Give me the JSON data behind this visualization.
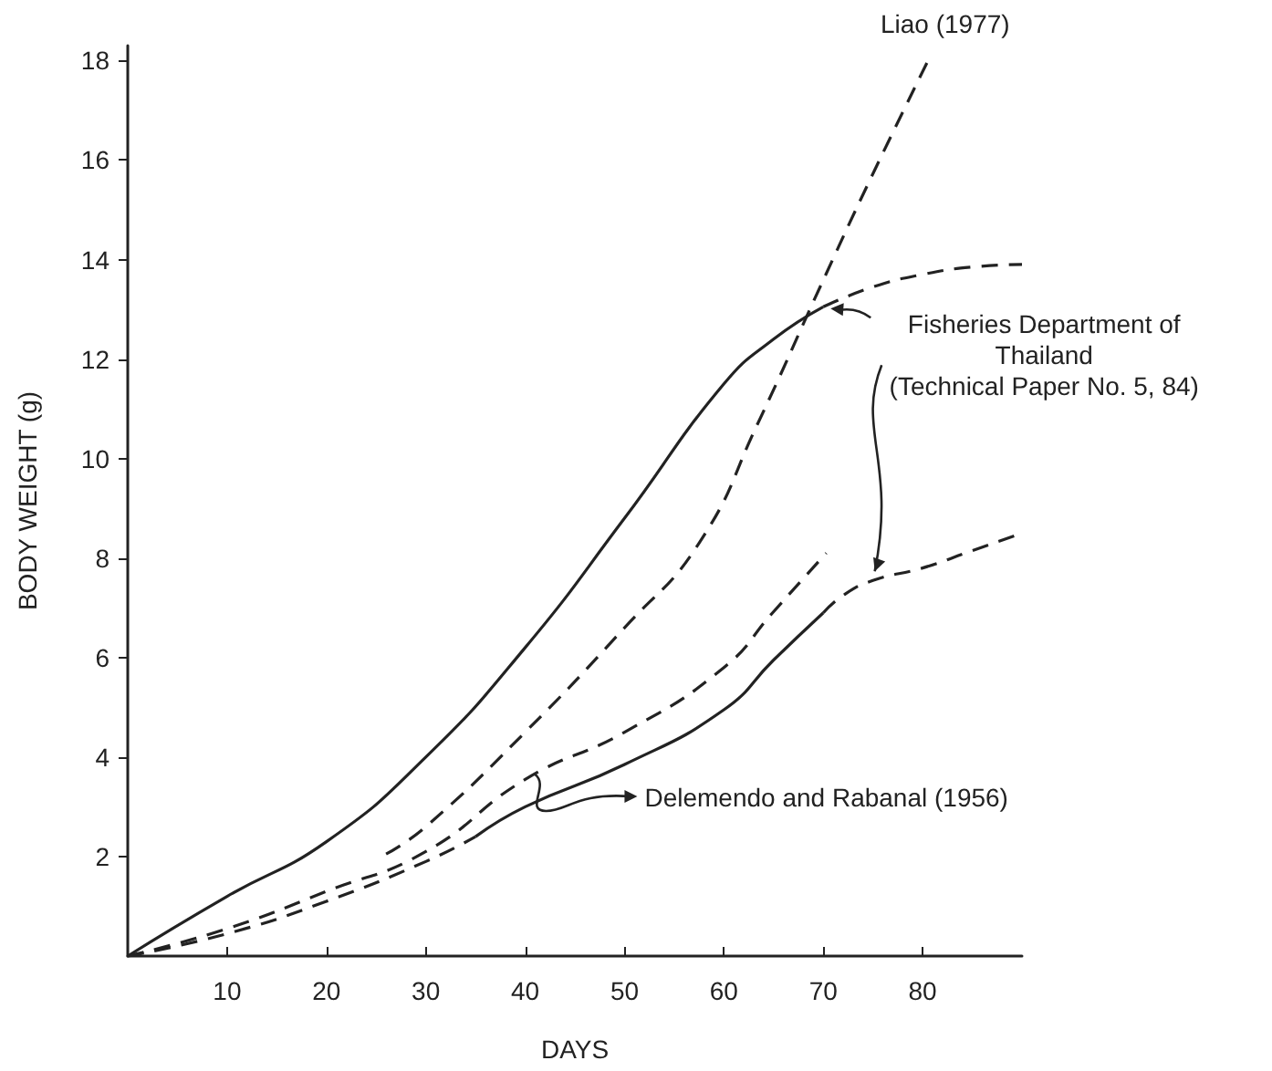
{
  "chart_data": {
    "type": "line",
    "xlabel": "DAYS",
    "ylabel": "BODY WEIGHT (g)",
    "xlim": [
      0,
      90
    ],
    "ylim": [
      0,
      18.3
    ],
    "xticks": [
      10,
      20,
      30,
      40,
      50,
      60,
      70,
      80
    ],
    "yticks": [
      2,
      4,
      6,
      8,
      10,
      12,
      14,
      16,
      18
    ],
    "marker": "none",
    "series": [
      {
        "color": "#222222",
        "line_style": "solid",
        "x": [
          0,
          10,
          20,
          30,
          40,
          50,
          60,
          65,
          70
        ],
        "values": [
          0,
          1.2,
          2.3,
          4.0,
          6.2,
          8.8,
          11.5,
          12.4,
          13.05
        ]
      },
      {
        "color": "#222222",
        "line_style": "dashed",
        "x": [
          70,
          75,
          80,
          85,
          90
        ],
        "values": [
          13.05,
          13.45,
          13.7,
          13.85,
          13.9
        ]
      },
      {
        "color": "#222222",
        "line_style": "dashed",
        "x": [
          26,
          30,
          40,
          50,
          57.5,
          63.4,
          69.8,
          74.7,
          80.8
        ],
        "values": [
          2.05,
          2.6,
          4.5,
          6.6,
          8.3,
          10.7,
          13.5,
          15.6,
          18.1
        ]
      },
      {
        "color": "#222222",
        "line_style": "dashed",
        "x": [
          0,
          10,
          20,
          30,
          40,
          50,
          60,
          64.9,
          70.3
        ],
        "values": [
          0,
          0.55,
          1.3,
          2.1,
          3.55,
          4.5,
          5.8,
          6.9,
          8.1
        ]
      },
      {
        "color": "#222222",
        "line_style": "dashed",
        "x": [
          0,
          10,
          20,
          30,
          35
        ],
        "values": [
          0,
          0.45,
          1.1,
          1.9,
          2.4
        ]
      },
      {
        "color": "#222222",
        "line_style": "solid",
        "x": [
          35,
          40,
          50,
          60,
          65,
          70
        ],
        "values": [
          2.4,
          3.0,
          3.85,
          4.95,
          5.95,
          6.9
        ]
      },
      {
        "color": "#222222",
        "line_style": "dashed",
        "x": [
          70,
          72,
          75,
          80,
          85,
          90
        ],
        "values": [
          6.9,
          7.25,
          7.55,
          7.8,
          8.15,
          8.5
        ]
      }
    ],
    "annotations": [
      {
        "text": "Liao (1977)",
        "x": 80.8,
        "y": 18.1
      },
      {
        "text": "Fisheries Department of\nThailand\n(Technical Paper No. 5, 84)",
        "x": 70,
        "y": 13.05
      },
      {
        "text": "Delemendo and Rabanal (1956)",
        "x": 41,
        "y": 3.65
      }
    ]
  }
}
